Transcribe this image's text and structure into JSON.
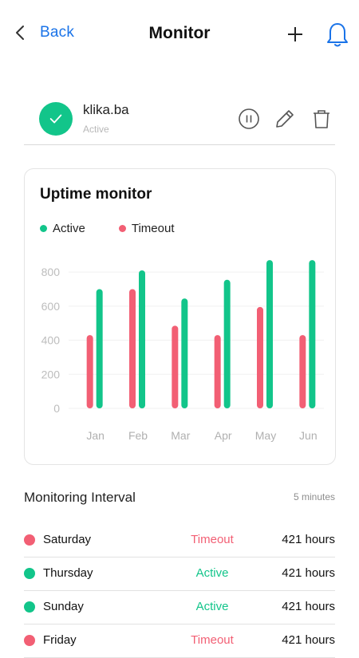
{
  "colors": {
    "accent_blue": "#1a73e8",
    "active_green": "#12c58a",
    "timeout_red": "#f25f74"
  },
  "nav": {
    "back_label": "Back",
    "title": "Monitor"
  },
  "site": {
    "name": "klika.ba",
    "status": "Active"
  },
  "chart_data": {
    "type": "bar",
    "title": "Uptime monitor",
    "categories": [
      "Jan",
      "Feb",
      "Mar",
      "Apr",
      "May",
      "Jun"
    ],
    "series": [
      {
        "name": "Timeout",
        "color": "#f25f74",
        "values": [
          430,
          700,
          485,
          430,
          595,
          430
        ]
      },
      {
        "name": "Active",
        "color": "#12c58a",
        "values": [
          700,
          810,
          645,
          755,
          870,
          870
        ]
      }
    ],
    "y_ticks": [
      0,
      200,
      400,
      600,
      800
    ],
    "ylim": [
      0,
      880
    ],
    "grid": true,
    "legend_position": "top-left"
  },
  "interval": {
    "label": "Monitoring Interval",
    "value": "5 minutes"
  },
  "events": [
    {
      "day": "Saturday",
      "status": "Timeout",
      "hours": "421 hours"
    },
    {
      "day": "Thursday",
      "status": "Active",
      "hours": "421 hours"
    },
    {
      "day": "Sunday",
      "status": "Active",
      "hours": "421 hours"
    },
    {
      "day": "Friday",
      "status": "Timeout",
      "hours": "421 hours"
    }
  ]
}
